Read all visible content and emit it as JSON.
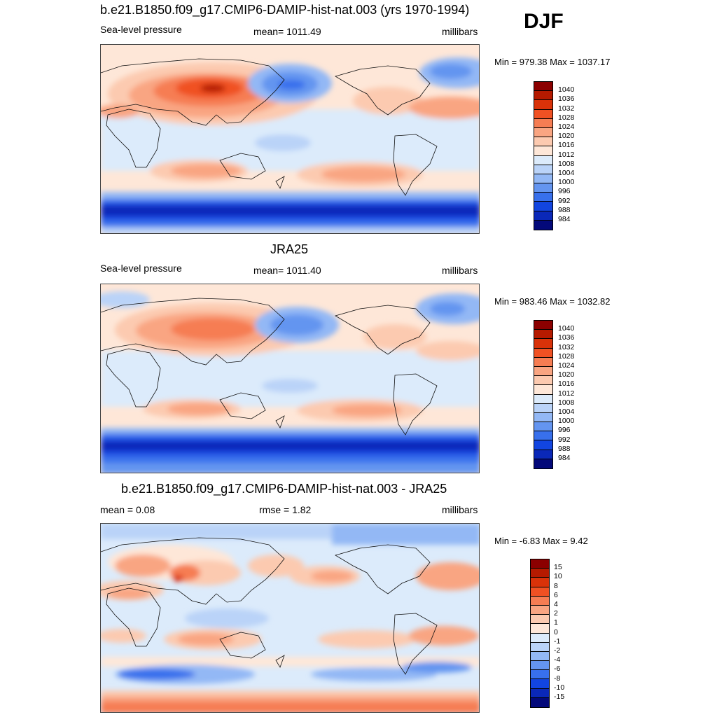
{
  "season": "DJF",
  "panels": [
    {
      "title": "b.e21.B1850.f09_g17.CMIP6-DAMIP-hist-nat.003 (yrs 1970-1994)",
      "left_label": "Sea-level pressure",
      "center_label": "mean= 1011.49",
      "right_label": "millibars",
      "minmax": "Min = 979.38 Max = 1037.17",
      "legend_labels": [
        "1040",
        "1036",
        "1032",
        "1028",
        "1024",
        "1020",
        "1016",
        "1012",
        "1008",
        "1004",
        "1000",
        "996",
        "992",
        "988",
        "984"
      ],
      "legend_colors": [
        "#8b0000",
        "#b51a00",
        "#d93209",
        "#f05123",
        "#f67d53",
        "#f9a582",
        "#fccab0",
        "#fee7d8",
        "#dcebfb",
        "#bad3f8",
        "#93b8f5",
        "#6495f0",
        "#3870ec",
        "#1245e0",
        "#0a28b8",
        "#03097a"
      ]
    },
    {
      "title": "JRA25",
      "left_label": "Sea-level pressure",
      "center_label": "mean= 1011.40",
      "right_label": "millibars",
      "minmax": "Min = 983.46 Max = 1032.82",
      "legend_labels": [
        "1040",
        "1036",
        "1032",
        "1028",
        "1024",
        "1020",
        "1016",
        "1012",
        "1008",
        "1004",
        "1000",
        "996",
        "992",
        "988",
        "984"
      ],
      "legend_colors": [
        "#8b0000",
        "#b51a00",
        "#d93209",
        "#f05123",
        "#f67d53",
        "#f9a582",
        "#fccab0",
        "#fee7d8",
        "#dcebfb",
        "#bad3f8",
        "#93b8f5",
        "#6495f0",
        "#3870ec",
        "#1245e0",
        "#0a28b8",
        "#03097a"
      ]
    },
    {
      "title": "b.e21.B1850.f09_g17.CMIP6-DAMIP-hist-nat.003 - JRA25",
      "left_label": "mean =   0.08",
      "center_label": "rmse =   1.82",
      "right_label": "millibars",
      "minmax": "Min =  -6.83 Max =   9.42",
      "legend_labels": [
        "15",
        "10",
        "8",
        "6",
        "4",
        "2",
        "1",
        "0",
        "-1",
        "-2",
        "-4",
        "-6",
        "-8",
        "-10",
        "-15"
      ],
      "legend_colors": [
        "#8b0000",
        "#b51a00",
        "#d93209",
        "#f05123",
        "#f67d53",
        "#f9a582",
        "#fccab0",
        "#fee7d8",
        "#dcebfb",
        "#bad3f8",
        "#93b8f5",
        "#6495f0",
        "#3870ec",
        "#1245e0",
        "#0a28b8",
        "#03097a"
      ]
    }
  ]
}
